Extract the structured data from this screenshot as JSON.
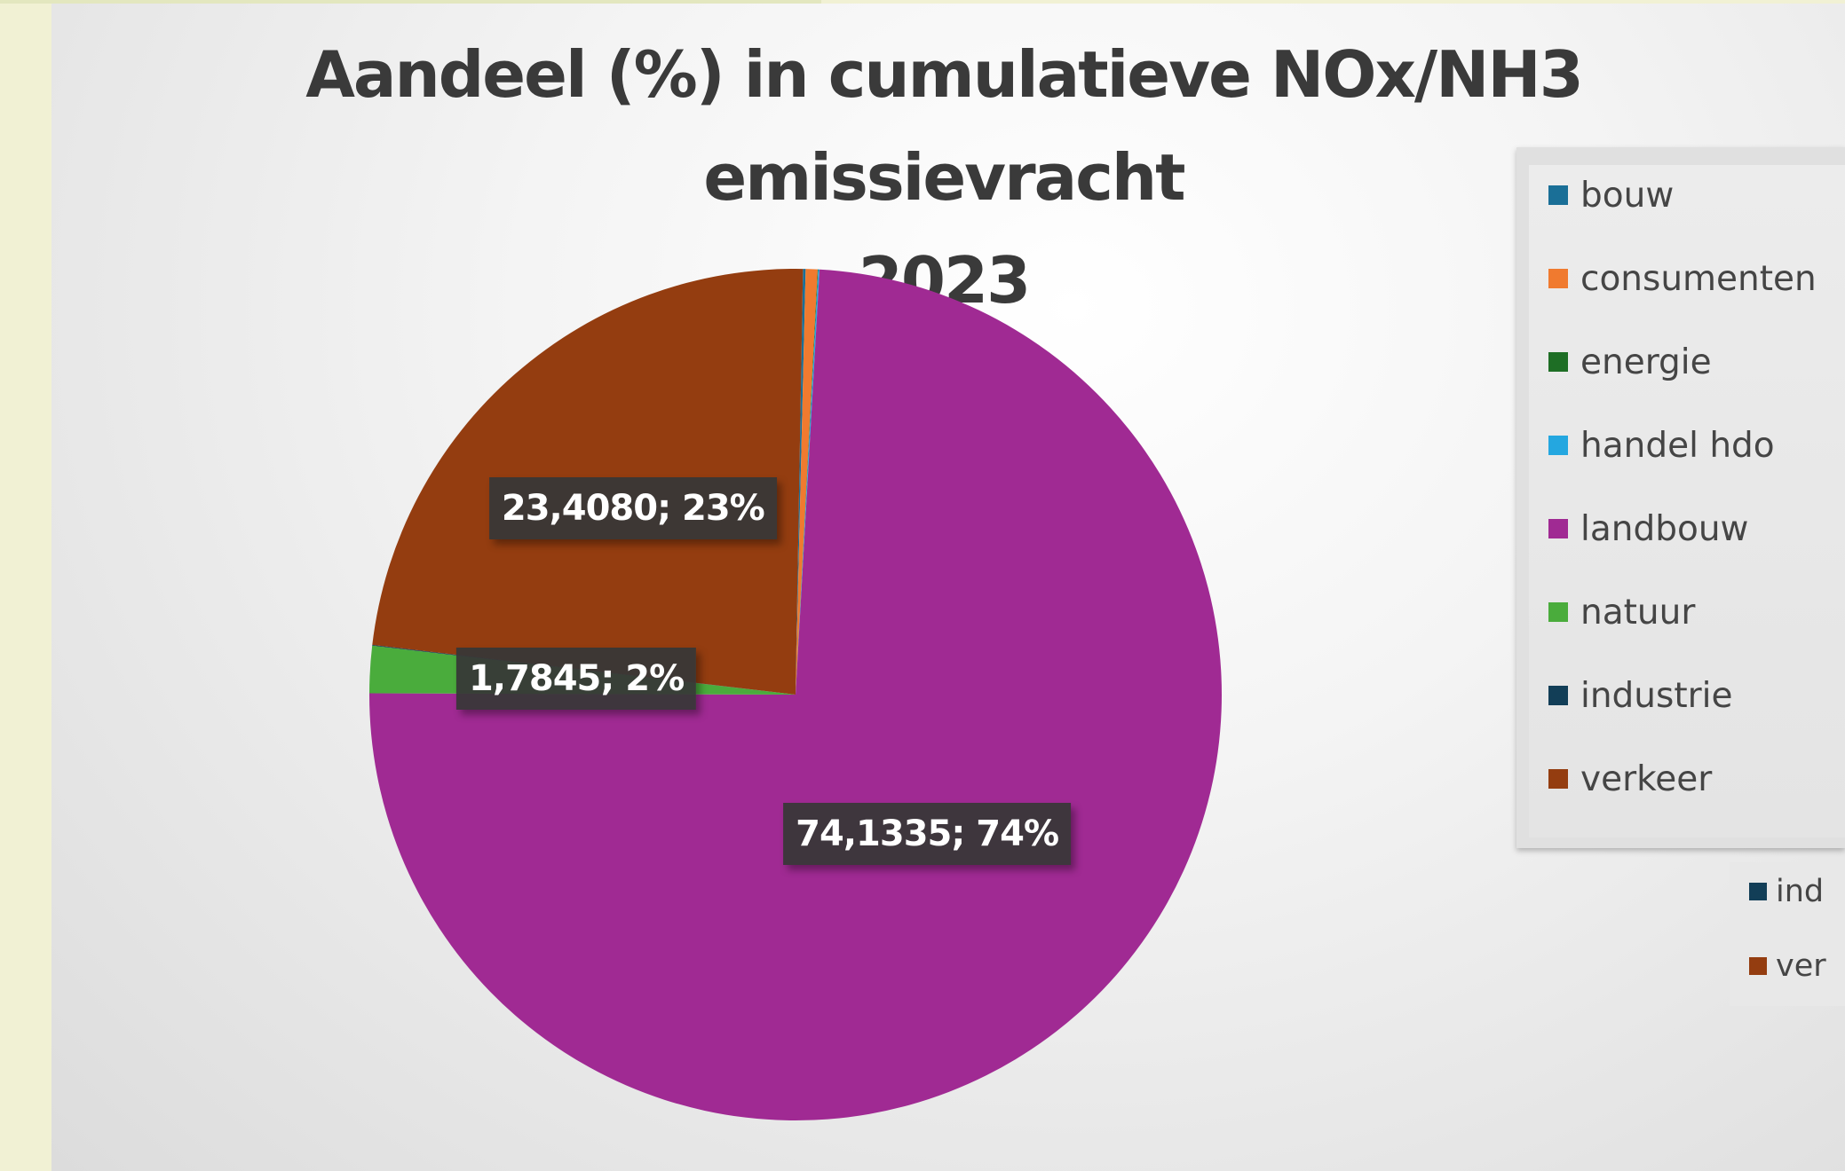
{
  "chart_data": {
    "type": "pie",
    "title": "Aandeel (%) in cumulatieve NOx/NH3 emissievracht 2023",
    "title_lines": [
      "Aandeel (%) in cumulatieve NOx/NH3 emissievracht",
      "2023"
    ],
    "legend_position": "right",
    "categories": [
      "bouw",
      "consumenten",
      "energie",
      "handel hdo",
      "landbouw",
      "natuur",
      "industrie",
      "verkeer"
    ],
    "values": [
      0.1,
      0.45,
      0.02,
      0.05,
      74.1335,
      1.7845,
      0.03,
      23.408
    ],
    "colors": [
      "#1a6f97",
      "#f07a2f",
      "#1e6e25",
      "#24a7e0",
      "#a02a93",
      "#4aac3c",
      "#123e57",
      "#943d10"
    ],
    "data_labels": [
      {
        "category": "verkeer",
        "text": "23,4080; 23%"
      },
      {
        "category": "natuur",
        "text": "1,7845; 2%"
      },
      {
        "category": "landbouw",
        "text": "74,1335; 74%"
      }
    ],
    "secondary_legend": [
      {
        "label": "ind",
        "color": "#123e57"
      },
      {
        "label": "ver",
        "color": "#943d10"
      }
    ]
  }
}
